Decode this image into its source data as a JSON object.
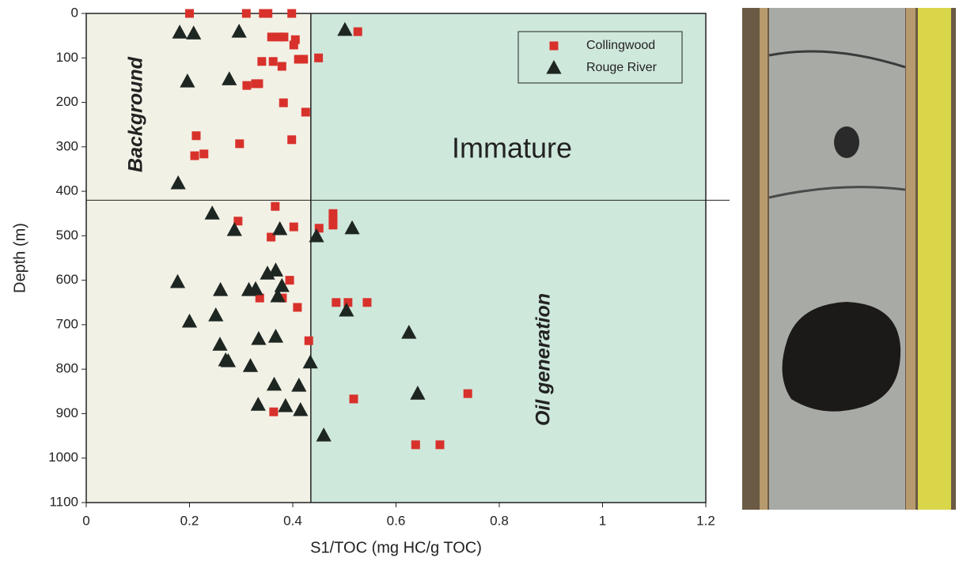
{
  "chart_data": {
    "type": "scatter",
    "xlabel": "S1/TOC (mg HC/g TOC)",
    "ylabel": "Depth (m)",
    "xlim": [
      0,
      1.2
    ],
    "xticks": [
      0,
      0.2,
      0.4,
      0.6,
      0.8,
      1,
      1.2
    ],
    "ylim": [
      0,
      1100
    ],
    "yticks": [
      0,
      100,
      200,
      300,
      400,
      500,
      600,
      700,
      800,
      900,
      1000,
      1100
    ],
    "y_inverted": true,
    "x_split": 0.435,
    "y_split": 420,
    "left_region_color": "#f2f1e6",
    "right_region_color": "#cfe8dc",
    "annotations": [
      "Background",
      "Immature",
      "Oil generation"
    ],
    "legend": "upper right",
    "series": [
      {
        "name": "Collingwood",
        "color": "#d8312b",
        "marker": "square",
        "x": [
          0.2,
          0.31,
          0.343,
          0.352,
          0.398,
          0.526,
          0.45,
          0.359,
          0.374,
          0.383,
          0.405,
          0.402,
          0.34,
          0.362,
          0.379,
          0.411,
          0.421,
          0.311,
          0.328,
          0.334,
          0.382,
          0.425,
          0.213,
          0.297,
          0.398,
          0.21,
          0.228,
          0.366,
          0.294,
          0.402,
          0.358,
          0.451,
          0.478,
          0.478,
          0.478,
          0.394,
          0.336,
          0.38,
          0.409,
          0.484,
          0.507,
          0.544,
          0.431,
          0.518,
          0.363,
          0.739,
          0.638,
          0.685
        ],
        "values": [
          0,
          0,
          0,
          0,
          0,
          41,
          100,
          53,
          53,
          53,
          59,
          71,
          108,
          108,
          119,
          103,
          103,
          162,
          158,
          158,
          201,
          222,
          275,
          293,
          284,
          320,
          316,
          434,
          467,
          480,
          503,
          483,
          450,
          464,
          476,
          600,
          640,
          640,
          661,
          650,
          650,
          650,
          736,
          867,
          896,
          855,
          970,
          970
        ]
      },
      {
        "name": "Rouge River",
        "color": "#1e2622",
        "marker": "triangle",
        "x": [
          0.501,
          0.181,
          0.208,
          0.296,
          0.196,
          0.277,
          0.178,
          0.244,
          0.287,
          0.375,
          0.446,
          0.515,
          0.177,
          0.26,
          0.315,
          0.328,
          0.351,
          0.367,
          0.379,
          0.371,
          0.251,
          0.2,
          0.504,
          0.259,
          0.334,
          0.367,
          0.27,
          0.275,
          0.318,
          0.434,
          0.364,
          0.412,
          0.386,
          0.333,
          0.415,
          0.46,
          0.625,
          0.642
        ],
        "values": [
          37,
          43,
          45,
          41,
          153,
          148,
          382,
          450,
          487,
          485,
          501,
          483,
          604,
          622,
          622,
          620,
          585,
          578,
          613,
          636,
          679,
          693,
          668,
          745,
          732,
          727,
          780,
          782,
          793,
          785,
          835,
          837,
          883,
          880,
          892,
          949,
          718,
          855
        ]
      }
    ]
  }
}
